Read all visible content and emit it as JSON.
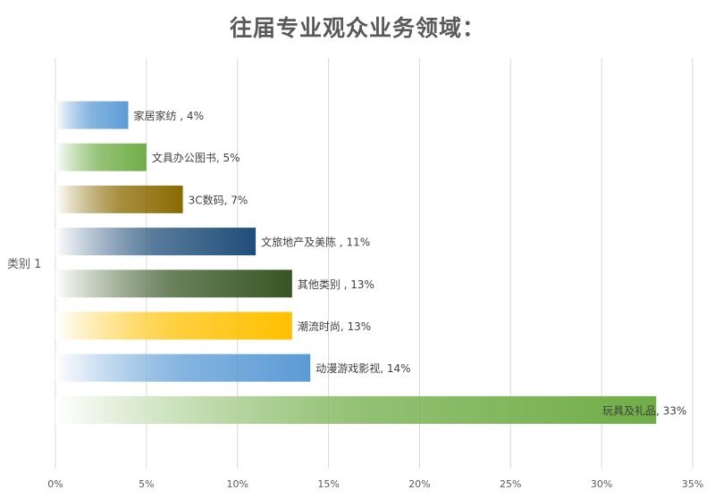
{
  "chart_data": {
    "type": "bar",
    "orientation": "horizontal",
    "title": "往届专业观众业务领域：",
    "category_axis_label": "类别 1",
    "xlim": [
      0,
      35
    ],
    "x_ticks": [
      "0%",
      "5%",
      "10%",
      "15%",
      "20%",
      "25%",
      "30%",
      "35%"
    ],
    "grid": true,
    "series": [
      {
        "label": "家居家纺 , 4%",
        "value": 4,
        "color": "#5B9BD5"
      },
      {
        "label": "文具办公图书, 5%",
        "value": 5,
        "color": "#70AD47"
      },
      {
        "label": "3C数码, 7%",
        "value": 7,
        "color": "#8A6A00"
      },
      {
        "label": "文旅地产及美陈 , 11%",
        "value": 11,
        "color": "#1F4E79"
      },
      {
        "label": "其他类别 , 13%",
        "value": 13,
        "color": "#375623"
      },
      {
        "label": "潮流时尚, 13%",
        "value": 13,
        "color": "#FFC000"
      },
      {
        "label": "动漫游戏影视, 14%",
        "value": 14,
        "color": "#5B9BD5"
      },
      {
        "label": "玩具及礼品, 33%",
        "value": 33,
        "color": "#70AD47"
      }
    ]
  }
}
